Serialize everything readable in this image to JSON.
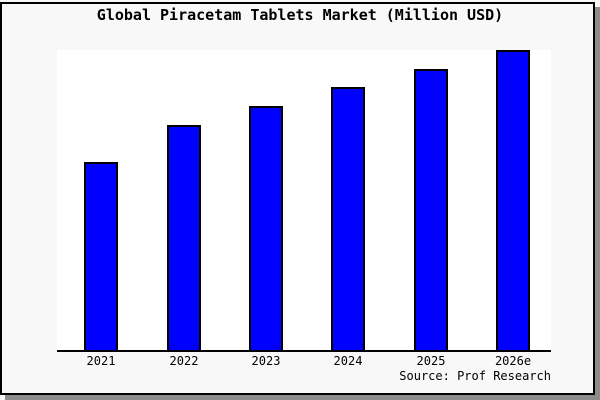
{
  "chart_data": {
    "type": "bar",
    "title": "Global Piracetam Tablets Market (Million USD)",
    "categories": [
      "2021",
      "2022",
      "2023",
      "2024",
      "2025",
      "2026e"
    ],
    "values": [
      62.8,
      75.1,
      81.4,
      87.7,
      93.7,
      100
    ],
    "values_note": "No y-axis ticks, labels or gridlines are shown; values are relative bar heights as % of the tallest (2026e) bar, estimated from pixels",
    "xlabel": "",
    "ylabel": "",
    "grid": false,
    "legend": false,
    "source_note": "Source: Prof Research",
    "bar_color": "#0000ff",
    "bar_border_color": "#000000"
  },
  "colors": {
    "figure_background": "#f8f8f8",
    "plot_background": "#ffffff",
    "frame_border": "#000000",
    "drop_shadow": "#8c8c8c",
    "text": "#000000"
  }
}
